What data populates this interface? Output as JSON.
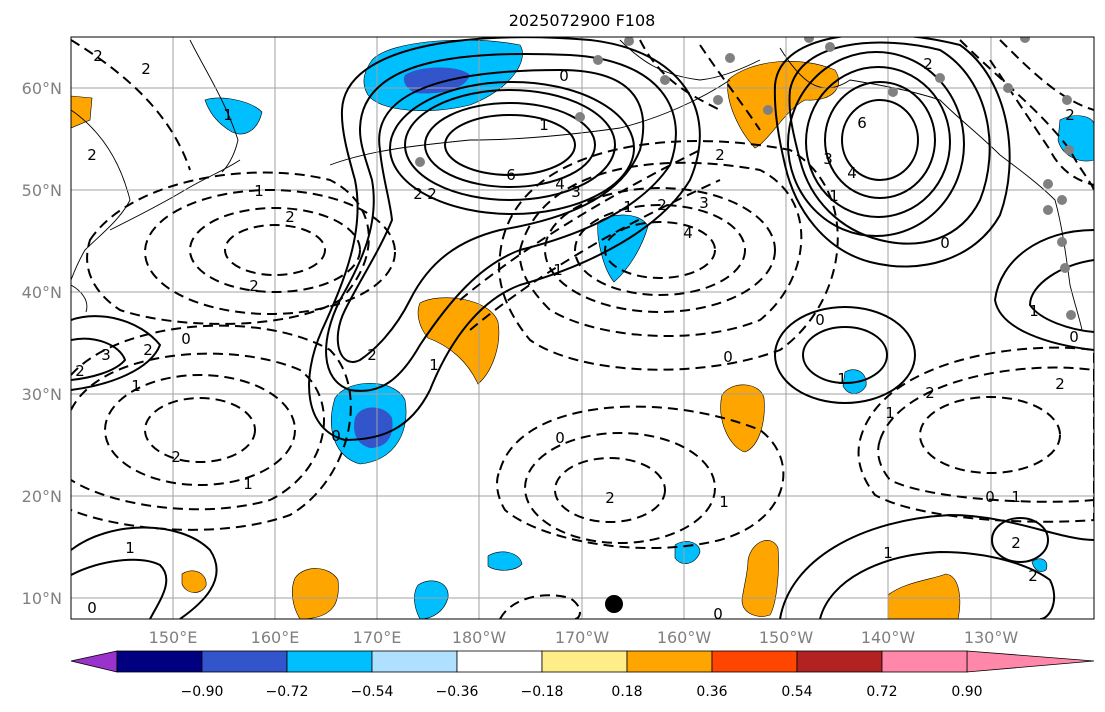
{
  "title": "2025072900 F108",
  "lon_labels": [
    "150°E",
    "160°E",
    "170°E",
    "180°W",
    "170°W",
    "160°W",
    "150°W",
    "140°W",
    "130°W"
  ],
  "lat_labels": [
    "60°N",
    "50°N",
    "40°N",
    "30°N",
    "20°N",
    "10°N"
  ],
  "colorbar": {
    "ticks": [
      "−0.90",
      "−0.72",
      "−0.54",
      "−0.36",
      "−0.18",
      "0.18",
      "0.36",
      "0.54",
      "0.72",
      "0.90"
    ],
    "colors": [
      "#9933cc",
      "#000080",
      "#3355cc",
      "#00bfff",
      "#b0e0ff",
      "#ffffff",
      "#ffee88",
      "#ffa500",
      "#ff4500",
      "#b22222",
      "#ff88aa"
    ]
  },
  "contour_labels": [
    "2",
    "2",
    "1",
    "2",
    "2",
    "1",
    "2",
    "2",
    "3",
    "2",
    "1",
    "0",
    "0",
    "2",
    "1",
    "2",
    "1",
    "0",
    "0",
    "6",
    "4",
    "3",
    "2",
    "2",
    "1",
    "1",
    "2",
    "3",
    "4",
    "1",
    "0",
    "6",
    "4",
    "3",
    "1",
    "0",
    "0",
    "2",
    "0",
    "1",
    "2",
    "2",
    "1",
    "0",
    "1",
    "1",
    "2",
    "2",
    "1",
    "2",
    "0",
    "1",
    "2",
    "2",
    "1",
    "0"
  ]
}
